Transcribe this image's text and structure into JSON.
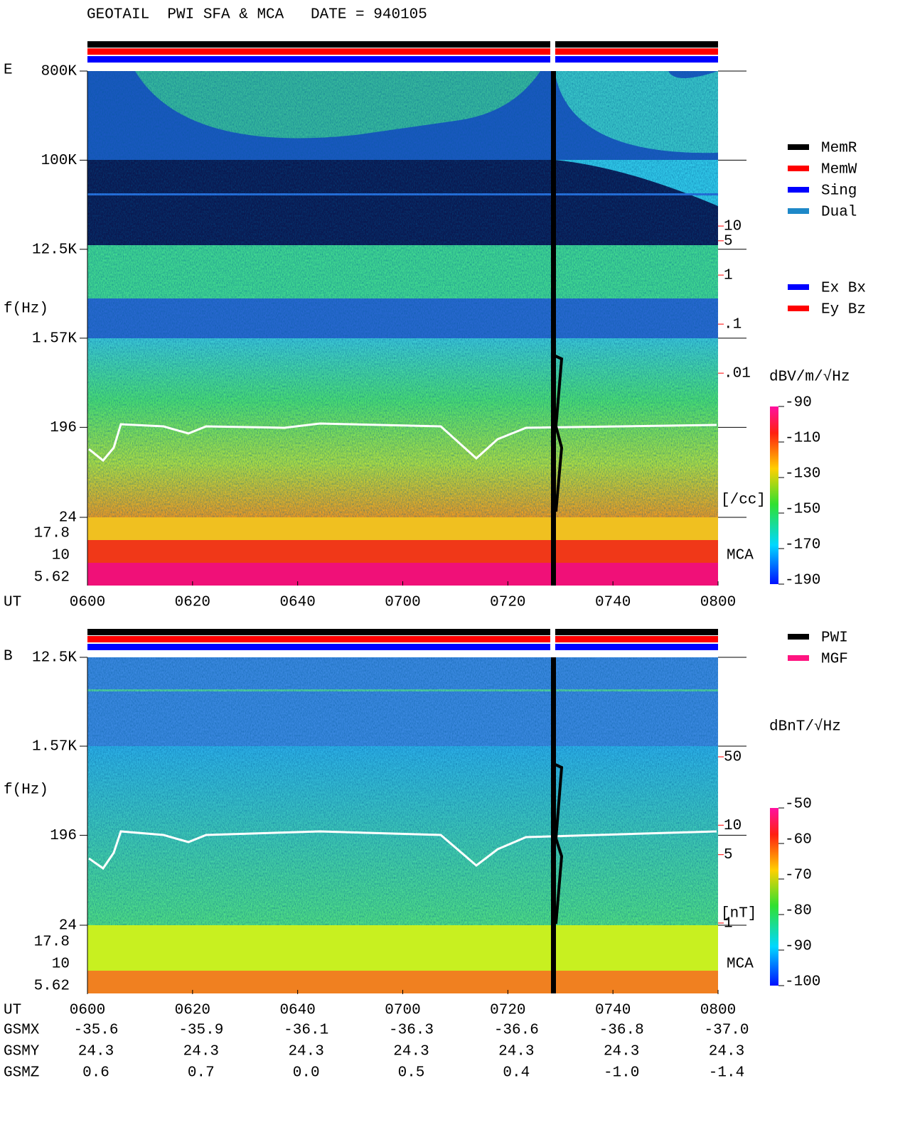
{
  "title": "GEOTAIL  PWI SFA & MCA   DATE = 940105",
  "chart_data": [
    {
      "type": "spectrogram",
      "panel_label": "E",
      "ylabel": "f(Hz)",
      "xlabel": "UT",
      "yscale": "log",
      "ylim": [
        24,
        800000
      ],
      "yticks": [
        {
          "value": 800000,
          "label": "800K"
        },
        {
          "value": 100000,
          "label": "100K"
        },
        {
          "value": 12500,
          "label": "12.5K"
        },
        {
          "value": 1570,
          "label": "1.57K"
        },
        196,
        24
      ],
      "mca_labels": [
        "17.8",
        "10",
        "5.62"
      ],
      "mca_title": "MCA",
      "y2label": "[/cc]",
      "y2color": "#ff0000",
      "y2scale": "log",
      "y2lim": [
        1.15e-05,
        14450
      ],
      "y2ticks": [
        10,
        5,
        1,
        {
          "value": 0.1,
          "label": ".1"
        },
        {
          "value": 0.01,
          "label": ".01"
        }
      ],
      "xticks": [
        "0600",
        "0620",
        "0640",
        "0700",
        "0720",
        "0740",
        "0800"
      ],
      "colorbar": {
        "label": "dBV/m/√Hz",
        "lim": [
          -190,
          -90
        ],
        "ticks": [
          -90,
          -110,
          -130,
          -150,
          -170,
          -190
        ]
      },
      "legend_status": [
        {
          "name": "MemR",
          "color": "#000000"
        },
        {
          "name": "MemW",
          "color": "#ff0000"
        },
        {
          "name": "Sing",
          "color": "#0000ff"
        },
        {
          "name": "Dual",
          "color": "#1e88c8"
        }
      ],
      "legend_components": [
        {
          "name": "Ex Bx",
          "color": "#0000ff"
        },
        {
          "name": "Ey Bz",
          "color": "#ff0000"
        }
      ]
    },
    {
      "type": "spectrogram",
      "panel_label": "B",
      "ylabel": "f(Hz)",
      "xlabel": "UT",
      "yscale": "log",
      "ylim": [
        24,
        12500
      ],
      "yticks": [
        {
          "value": 12500,
          "label": "12.5K"
        },
        {
          "value": 1570,
          "label": "1.57K"
        },
        196,
        24
      ],
      "mca_labels": [
        "17.8",
        "10",
        "5.62"
      ],
      "mca_title": "MCA",
      "y2label": "[nT]",
      "y2color": "#ff0000",
      "y2scale": "log",
      "y2lim": [
        0.95,
        520
      ],
      "y2ticks": [
        50,
        10,
        5,
        1
      ],
      "xticks": [
        "0600",
        "0620",
        "0640",
        "0700",
        "0720",
        "0740",
        "0800"
      ],
      "colorbar": {
        "label": "dBnT/√Hz",
        "lim": [
          -100,
          -50
        ],
        "ticks": [
          -50,
          -60,
          -70,
          -80,
          -90,
          -100
        ]
      },
      "legend_source": [
        {
          "name": "PWI",
          "color": "#000000"
        },
        {
          "name": "MGF",
          "color": "#ff1480"
        }
      ]
    }
  ],
  "orbit_table": {
    "rows": [
      {
        "label": "GSMX",
        "values": [
          "-35.6",
          "-35.9",
          "-36.1",
          "-36.3",
          "-36.6",
          "-36.8",
          "-37.0"
        ]
      },
      {
        "label": "GSMY",
        "values": [
          "24.3",
          "24.3",
          "24.3",
          "24.3",
          "24.3",
          "24.3",
          "24.3"
        ]
      },
      {
        "label": "GSMZ",
        "values": [
          "0.6",
          "0.7",
          "0.0",
          "0.5",
          "0.4",
          "-1.0",
          "-1.4"
        ]
      }
    ]
  }
}
